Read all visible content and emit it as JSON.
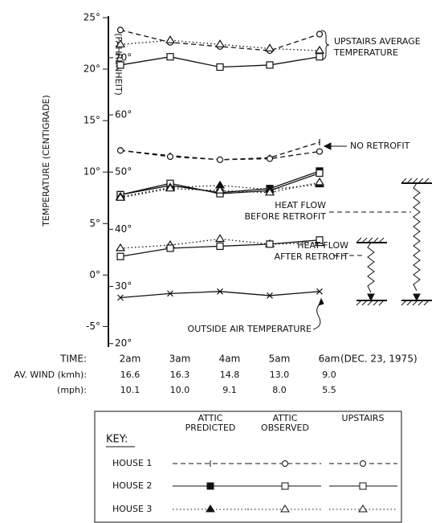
{
  "chart_data": {
    "type": "line",
    "y_label": "TEMPERATURE (CENTIGRADE)",
    "y2_label": "(FAHRENHEIT)",
    "categories": [
      "2am",
      "3am",
      "4am",
      "5am",
      "6am"
    ],
    "ylim": [
      -7,
      25
    ],
    "yticks": [
      {
        "value": -5,
        "label": "-5°"
      },
      {
        "value": 0,
        "label": "0°"
      },
      {
        "value": 5,
        "label": "5°"
      },
      {
        "value": 10,
        "label": "10°"
      },
      {
        "value": 15,
        "label": "15°"
      },
      {
        "value": 20,
        "label": "20°"
      },
      {
        "value": 25,
        "label": "25°"
      }
    ],
    "y2lim": [
      19.4,
      77
    ],
    "y2ticks": [
      {
        "value": 20,
        "label": "20°"
      },
      {
        "value": 30,
        "label": "30°"
      },
      {
        "value": 40,
        "label": "40°"
      },
      {
        "value": 50,
        "label": "50°"
      },
      {
        "value": 60,
        "label": "60°"
      },
      {
        "value": 70,
        "label": "70°"
      }
    ],
    "series": [
      {
        "color": "#111111",
        "dash": "dashed",
        "marker": "circle",
        "values": [
          23.8,
          22.6,
          22.2,
          21.8,
          23.4
        ]
      },
      {
        "color": "#111111",
        "dash": "dotted",
        "marker": "triangle",
        "values": [
          22.4,
          22.8,
          22.4,
          22.0,
          21.8
        ]
      },
      {
        "color": "#111111",
        "dash": "solid",
        "marker": "square",
        "values": [
          20.4,
          21.2,
          20.2,
          20.4,
          21.2
        ]
      },
      {
        "color": "#111111",
        "dash": "dashed",
        "marker": "tick",
        "values": [
          12.1,
          11.6,
          11.2,
          11.4,
          12.9
        ]
      },
      {
        "color": "#111111",
        "dash": "dashed",
        "marker": "circle",
        "values": [
          12.1,
          11.5,
          11.2,
          11.3,
          12.0
        ]
      },
      {
        "color": "#111111",
        "dash": "solid",
        "marker": "square-filled",
        "values": [
          7.8,
          8.7,
          8.0,
          8.4,
          10.1
        ]
      },
      {
        "color": "#111111",
        "dash": "solid",
        "marker": "square",
        "values": [
          7.8,
          8.9,
          7.9,
          8.2,
          9.9
        ]
      },
      {
        "color": "#111111",
        "dash": "dotted",
        "marker": "triangle-filled",
        "values": [
          7.6,
          8.5,
          8.7,
          8.3,
          8.8
        ]
      },
      {
        "color": "#111111",
        "dash": "dotted",
        "marker": "triangle",
        "values": [
          7.5,
          8.4,
          8.2,
          8.0,
          9.0
        ]
      },
      {
        "color": "#111111",
        "dash": "dotted",
        "marker": "triangle",
        "values": [
          2.6,
          2.9,
          3.5,
          3.0,
          3.1
        ]
      },
      {
        "color": "#111111",
        "dash": "solid",
        "marker": "square",
        "values": [
          1.8,
          2.6,
          2.8,
          3.0,
          3.4
        ]
      },
      {
        "color": "#111111",
        "dash": "solid",
        "marker": "cross",
        "values": [
          -2.2,
          -1.8,
          -1.6,
          -2.0,
          -1.6
        ]
      }
    ],
    "annotations": {
      "upstairs": [
        "UPSTAIRS AVERAGE",
        "TEMPERATURE"
      ],
      "no_retrofit": "NO RETROFIT",
      "before": [
        "HEAT FLOW",
        "BEFORE RETROFIT"
      ],
      "after": [
        "HEAT FLOW",
        "AFTER RETROFIT"
      ],
      "outside": "OUTSIDE AIR TEMPERATURE"
    },
    "rows": {
      "time_label": "TIME:",
      "date": "(DEC. 23, 1975)",
      "wind_kmh_label": "AV. WIND (kmh):",
      "wind_kmh": [
        "16.6",
        "16.3",
        "14.8",
        "13.0",
        "9.0"
      ],
      "wind_mph_label": "(mph):",
      "wind_mph": [
        "10.1",
        "10.0",
        "9.1",
        "8.0",
        "5.5"
      ]
    }
  },
  "key": {
    "title": "KEY:",
    "columns": [
      [
        "ATTIC",
        "PREDICTED"
      ],
      [
        "ATTIC",
        "OBSERVED"
      ],
      [
        "UPSTAIRS"
      ]
    ],
    "rows": [
      "HOUSE 1",
      "HOUSE 2",
      "HOUSE 3"
    ]
  }
}
